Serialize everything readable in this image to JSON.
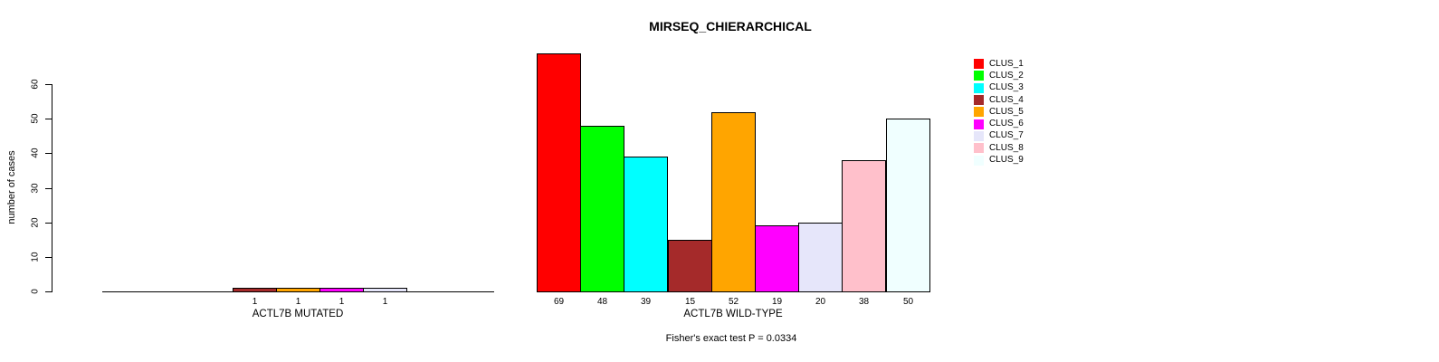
{
  "title": "MIRSEQ_CHIERARCHICAL",
  "chart_data": {
    "type": "bar",
    "title": "MIRSEQ_CHIERARCHICAL",
    "ylabel": "number of cases",
    "ylim": [
      0,
      60
    ],
    "yticks": [
      0,
      10,
      20,
      30,
      40,
      50,
      60
    ],
    "grid": false,
    "legend_position": "right",
    "clusters": [
      "CLUS_1",
      "CLUS_2",
      "CLUS_3",
      "CLUS_4",
      "CLUS_5",
      "CLUS_6",
      "CLUS_7",
      "CLUS_8",
      "CLUS_9"
    ],
    "colors": [
      "#FF0000",
      "#00FF00",
      "#00FFFF",
      "#A52A2A",
      "#FFA500",
      "#FF00FF",
      "#E6E6FA",
      "#FFC0CB",
      "#F0FFFF"
    ],
    "groups": [
      {
        "label": "ACTL7B MUTATED",
        "values": [
          0,
          0,
          0,
          1,
          1,
          1,
          1,
          0,
          0
        ]
      },
      {
        "label": "ACTL7B WILD-TYPE",
        "values": [
          69,
          48,
          39,
          15,
          52,
          19,
          20,
          38,
          50
        ]
      }
    ],
    "annotation": "Fisher's exact test P = 0.0334"
  }
}
